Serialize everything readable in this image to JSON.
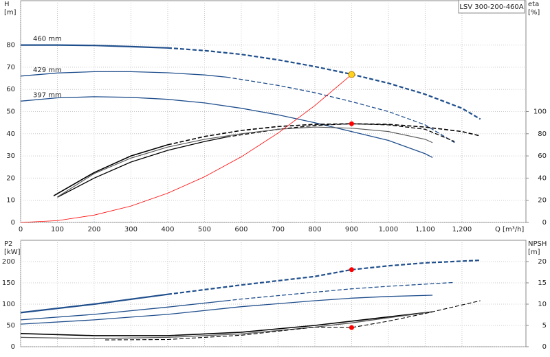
{
  "chart_data": [
    {
      "type": "line",
      "title": "LSV 300-200-460A",
      "ylabel": [
        "H",
        "[m]"
      ],
      "y2label": [
        "eta",
        "[%]"
      ],
      "xlabel": "Q [m³/h]",
      "xlim": [
        0,
        1374
      ],
      "xticks": [
        0,
        100,
        200,
        300,
        400,
        500,
        600,
        700,
        800,
        900,
        {
          "value": 1000,
          "label": "1,000"
        },
        {
          "value": 1100,
          "label": "1,100"
        },
        {
          "value": 1200,
          "label": "1,200"
        }
      ],
      "ylim": [
        0,
        100
      ],
      "yticks": [
        0,
        10,
        20,
        30,
        40,
        50,
        60,
        70,
        80
      ],
      "y2lim": [
        0,
        200
      ],
      "y2ticks": [
        0,
        20,
        40,
        60,
        80,
        100
      ],
      "grid": true,
      "series": [
        {
          "name": "460 mm",
          "color": "#1f4e8c",
          "dashed_from": 400,
          "x": [
            0,
            100,
            200,
            300,
            400,
            500,
            600,
            700,
            800,
            900,
            1000,
            1100,
            1200,
            1250
          ],
          "values": [
            80,
            80,
            79.8,
            79.3,
            78.7,
            77.5,
            75.8,
            73.3,
            70.3,
            66.8,
            62.8,
            57.8,
            51.5,
            46.6
          ]
        },
        {
          "name": "429 mm",
          "color": "#1f4e8c",
          "dashed_from": 560,
          "x": [
            0,
            100,
            200,
            300,
            400,
            500,
            560,
            600,
            700,
            800,
            900,
            1000,
            1100,
            1180
          ],
          "values": [
            66,
            67.4,
            68,
            68,
            67.5,
            66.5,
            65.5,
            64.5,
            61.8,
            58.5,
            54.5,
            50,
            44,
            36
          ]
        },
        {
          "name": "397 mm",
          "color": "#1f4e8c",
          "x": [
            0,
            100,
            200,
            300,
            400,
            500,
            600,
            700,
            800,
            900,
            1000,
            1100,
            1120
          ],
          "values": [
            54.7,
            56.2,
            56.7,
            56.4,
            55.5,
            53.9,
            51.5,
            48.5,
            45,
            41,
            37,
            31,
            29.3
          ]
        },
        {
          "color": "#000000",
          "axis": "y2",
          "dashed_from": 400,
          "x": [
            90,
            200,
            300,
            400,
            500,
            600,
            700,
            800,
            900,
            1000,
            1100,
            1200,
            1250
          ],
          "values": [
            24,
            45,
            60,
            70,
            77.5,
            83,
            86.5,
            88.5,
            89,
            88.5,
            86,
            82,
            78
          ]
        },
        {
          "color": "#000000",
          "axis": "y2",
          "dashed_from": 560,
          "x": [
            100,
            200,
            300,
            400,
            500,
            560,
            600,
            700,
            800,
            900,
            1000,
            1100,
            1180
          ],
          "values": [
            22.7,
            40,
            54.5,
            65,
            73,
            77,
            79,
            84,
            87.5,
            89,
            88,
            84,
            73
          ]
        },
        {
          "color": "#555555",
          "axis": "y2",
          "x": [
            100,
            200,
            300,
            400,
            500,
            600,
            700,
            800,
            900,
            1000,
            1100,
            1120
          ],
          "values": [
            23,
            44,
            58,
            68,
            75,
            80,
            84,
            86,
            85,
            82,
            75,
            72
          ]
        },
        {
          "color": "#ff0000",
          "x": [
            0,
            100,
            200,
            300,
            400,
            500,
            600,
            700,
            800,
            900
          ],
          "values": [
            0,
            0.8,
            3.3,
            7.4,
            13.2,
            20.6,
            29.6,
            40.3,
            52.7,
            66.7
          ]
        }
      ],
      "points": [
        {
          "x": 900,
          "y": 66.7,
          "color": "#ffd21f"
        },
        {
          "x": 900,
          "y": 89,
          "color": "#ff0000",
          "axis": "y2"
        }
      ]
    },
    {
      "type": "line",
      "ylabel": [
        "P2",
        "[kW]"
      ],
      "y2label": [
        "NPSH",
        "[m]"
      ],
      "xlim": [
        0,
        1374
      ],
      "xticks": [
        0,
        100,
        200,
        300,
        400,
        500,
        600,
        700,
        800,
        900,
        1000,
        1100,
        1200
      ],
      "ylim": [
        0,
        250
      ],
      "yticks": [
        0,
        50,
        100,
        150,
        200
      ],
      "y2lim": [
        0,
        25
      ],
      "y2ticks": [
        0,
        5,
        10,
        15,
        20
      ],
      "grid": true,
      "series": [
        {
          "color": "#1f4e8c",
          "dashed_from": 400,
          "x": [
            0,
            200,
            400,
            600,
            800,
            900,
            1000,
            1100,
            1250
          ],
          "values": [
            80,
            100,
            123,
            145,
            165,
            181,
            190,
            197,
            203
          ]
        },
        {
          "color": "#1f4e8c",
          "dashed_from": 560,
          "x": [
            0,
            200,
            400,
            560,
            600,
            800,
            900,
            1000,
            1100,
            1180
          ],
          "values": [
            63,
            76,
            93,
            108,
            112,
            128,
            136,
            142,
            147,
            151
          ]
        },
        {
          "color": "#1f4e8c",
          "x": [
            0,
            200,
            400,
            600,
            800,
            900,
            1000,
            1120
          ],
          "values": [
            53,
            63,
            76,
            94,
            108,
            114,
            118,
            121
          ]
        },
        {
          "color": "#000000",
          "axis": "y2",
          "x": [
            0,
            200,
            400,
            600,
            800,
            900,
            1000,
            1120
          ],
          "values": [
            3.1,
            2.6,
            2.6,
            3.4,
            5,
            6,
            7,
            8.2
          ]
        },
        {
          "color": "#555555",
          "axis": "y2",
          "x": [
            0,
            200,
            400,
            600,
            800,
            900,
            1000,
            1120
          ],
          "values": [
            2.2,
            1.9,
            2.2,
            3,
            4.6,
            5.6,
            6.8,
            8.2
          ]
        },
        {
          "color": "#000000",
          "axis": "y2",
          "dashed_from": 230,
          "x": [
            230,
            400,
            600,
            800,
            900,
            1000,
            1100,
            1250
          ],
          "values": [
            1.6,
            1.7,
            2.7,
            4.6,
            4.5,
            6,
            7.8,
            10.8
          ]
        }
      ],
      "points": [
        {
          "x": 900,
          "y": 181,
          "color": "#ff0000"
        },
        {
          "x": 900,
          "y": 4.5,
          "color": "#ff0000",
          "axis": "y2"
        }
      ]
    }
  ]
}
